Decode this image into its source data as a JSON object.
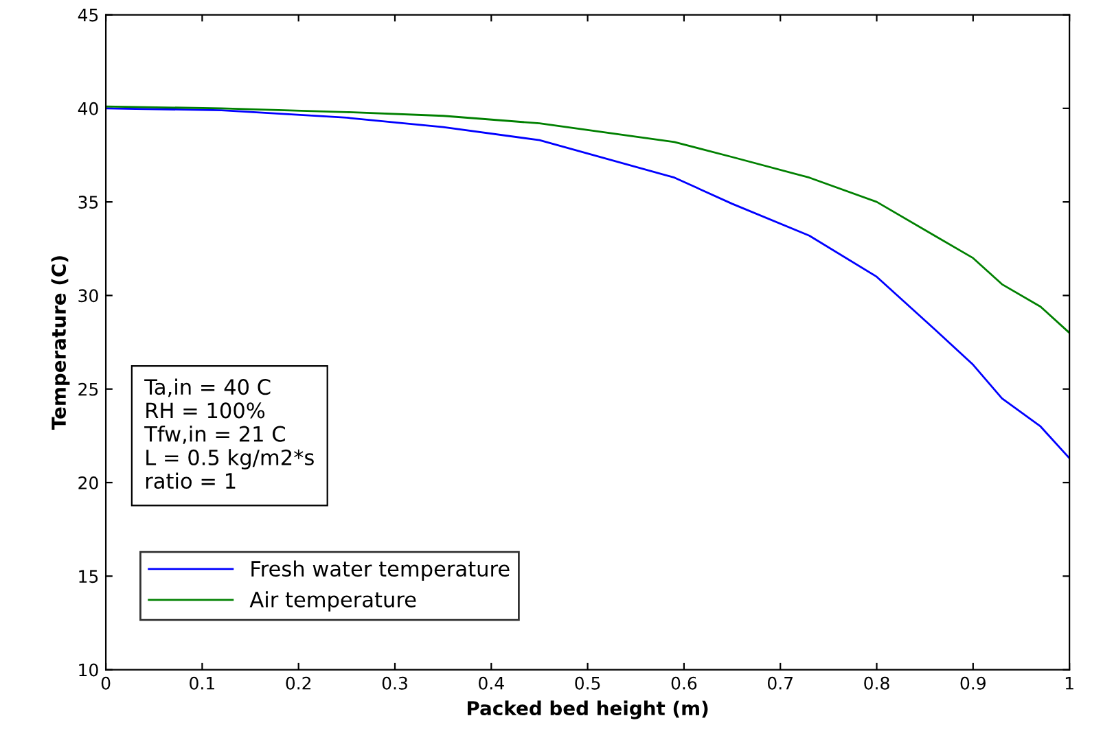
{
  "chart_data": {
    "type": "line",
    "xlabel": "Packed bed height (m)",
    "ylabel": "Temperature (C)",
    "x": [
      0,
      0.12,
      0.25,
      0.35,
      0.45,
      0.59,
      0.65,
      0.73,
      0.8,
      0.86,
      0.9,
      0.93,
      0.97,
      1
    ],
    "series": [
      {
        "name": "Fresh water temperature",
        "color": "#0000ff",
        "values": [
          40.0,
          39.9,
          39.5,
          39.0,
          38.3,
          36.3,
          34.9,
          33.2,
          31.0,
          28.2,
          26.3,
          24.5,
          23.0,
          21.3
        ]
      },
      {
        "name": "Air temperature",
        "color": "#008000",
        "values": [
          40.1,
          40.0,
          39.8,
          39.6,
          39.2,
          38.2,
          37.4,
          36.3,
          35.0,
          33.2,
          32.0,
          30.6,
          29.4,
          28.0
        ]
      }
    ],
    "xlim": [
      0,
      1
    ],
    "xticks": [
      0,
      0.1,
      0.2,
      0.3,
      0.4,
      0.5,
      0.6,
      0.7,
      0.8,
      0.9,
      1
    ],
    "ylim": [
      10,
      45
    ],
    "yticks": [
      10,
      15,
      20,
      25,
      30,
      35,
      40,
      45
    ],
    "annotations": [
      "Ta,in = 40 C\nRH = 100%\nTfw,in = 21 C\nL = 0.5 kg/m2*s\nratio = 1"
    ],
    "legend": "bottom left",
    "grid": false,
    "marker": "none",
    "line_style": "solid"
  }
}
